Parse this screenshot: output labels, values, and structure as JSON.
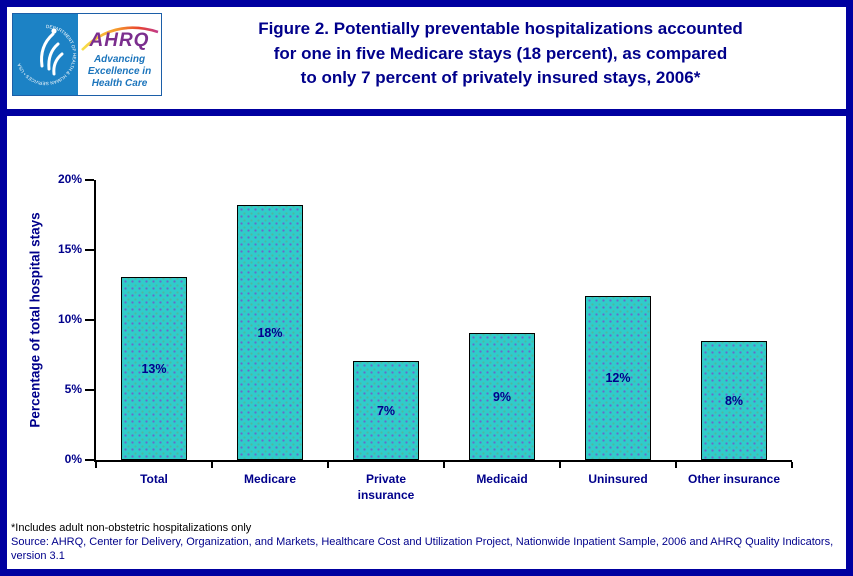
{
  "header": {
    "logo": {
      "seal_text": "DEPARTMENT OF HEALTH & HUMAN SERVICES • USA",
      "ahrq": "AHRQ",
      "tagline": "Advancing\nExcellence in\nHealth Care"
    },
    "title": "Figure 2. Potentially preventable hospitalizations accounted\nfor one in five Medicare stays (18 percent), as compared\nto only 7 percent of privately insured stays, 2006*"
  },
  "chart_data": {
    "type": "bar",
    "title": "",
    "categories": [
      "Total",
      "Medicare",
      "Private insurance",
      "Medicaid",
      "Uninsured",
      "Other insurance"
    ],
    "categories_display": [
      "Total",
      "Medicare",
      "Private\ninsurance",
      "Medicaid",
      "Uninsured",
      "Other insurance"
    ],
    "values": [
      13.1,
      18.2,
      7.1,
      9.1,
      11.7,
      8.5
    ],
    "bar_labels": [
      "13%",
      "18%",
      "7%",
      "9%",
      "12%",
      "8%"
    ],
    "xlabel": "",
    "ylabel": "Percentage of total hospital stays",
    "ylim": [
      0,
      20
    ],
    "ytick_values": [
      0,
      5,
      10,
      15,
      20
    ],
    "ytick_labels": [
      "0%",
      "5%",
      "10%",
      "15%",
      "20%"
    ],
    "grid": false,
    "legend": null,
    "bar_color": "#30CCCA",
    "bar_border_color": "#000000",
    "value_label_color": "#00008B"
  },
  "footnotes": {
    "note": "*Includes adult non-obstetric hospitalizations only",
    "source": "Source: AHRQ, Center for Delivery, Organization, and Markets, Healthcare Cost and Utilization Project, Nationwide Inpatient Sample, 2006 and AHRQ Quality Indicators, version 3.1"
  },
  "colors": {
    "page_border": "#0000A0",
    "navy_text": "#00008B",
    "teal_bar": "#30CCCA",
    "hhs_blue": "#1C82C5",
    "ahrq_purple": "#7B2E8E",
    "tagline_blue": "#1C75BC"
  }
}
